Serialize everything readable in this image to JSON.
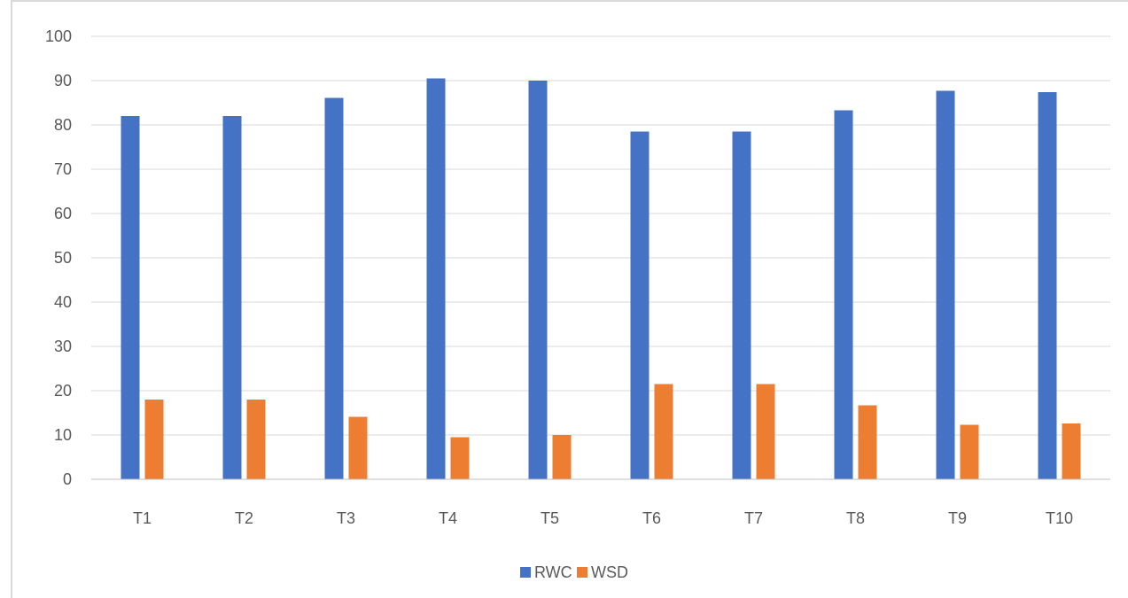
{
  "chart_data": {
    "type": "bar",
    "categories": [
      "T1",
      "T2",
      "T3",
      "T4",
      "T5",
      "T6",
      "T7",
      "T8",
      "T9",
      "T10"
    ],
    "series": [
      {
        "name": "RWC",
        "color": "#4472c4",
        "values": [
          82,
          82,
          86.1,
          90.5,
          90,
          78.5,
          78.5,
          83.3,
          87.7,
          87.4
        ]
      },
      {
        "name": "WSD",
        "color": "#ed7d31",
        "values": [
          18,
          18,
          14.1,
          9.5,
          10,
          21.5,
          21.5,
          16.7,
          12.3,
          12.6
        ]
      }
    ],
    "yticks": [
      "0",
      "10",
      "20",
      "30",
      "40",
      "50",
      "60",
      "70",
      "80",
      "90",
      "100"
    ],
    "ylim": [
      0,
      100
    ],
    "grid": true,
    "legend_position": "bottom"
  }
}
